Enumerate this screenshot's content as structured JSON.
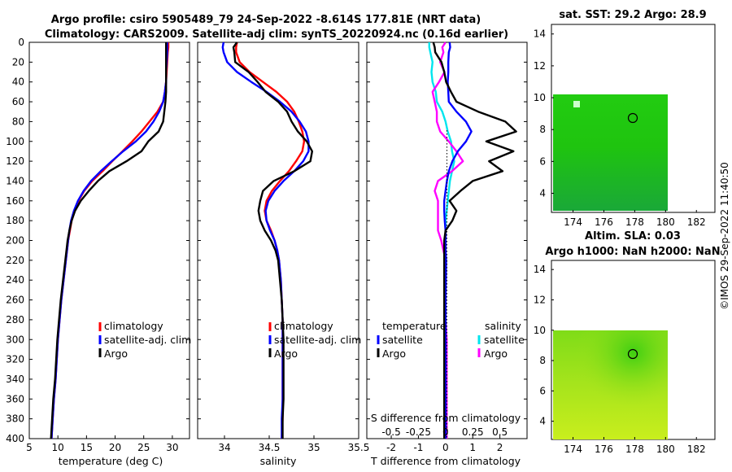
{
  "title": {
    "line1": "Argo profile: csiro 5905489_79 24-Sep-2022 -8.614S 177.81E (NRT data)",
    "line2": "Climatology: CARS2009. Satellite-adj clim: synTS_20220924.nc (0.16d earlier)"
  },
  "colors": {
    "climatology": "#ff0000",
    "satellite": "#0000ff",
    "argo": "#000000",
    "t_diff_sat": "#0000ff",
    "s_diff_sat": "#00e5ee",
    "s_diff_argo": "#ff00ff"
  },
  "depth_axis": {
    "ticks": [
      0,
      20,
      40,
      60,
      80,
      100,
      120,
      140,
      160,
      180,
      200,
      220,
      240,
      260,
      280,
      300,
      320,
      340,
      360,
      380,
      400
    ]
  },
  "panels": {
    "temperature": {
      "xlabel": "temperature (deg C)",
      "ticks": [
        5,
        10,
        15,
        20,
        25,
        30
      ]
    },
    "salinity": {
      "xlabel": "salinity",
      "ticks": [
        "34",
        "34.5",
        "35",
        "35.5"
      ]
    },
    "difference": {
      "xlabel": "T difference from climatology",
      "ticks": [
        "-2",
        "-1",
        "0",
        "1",
        "2"
      ],
      "s_label": "S difference from climatology",
      "s_ticks": [
        "-0.5",
        "-0.25",
        "0",
        "0.25",
        "0.5"
      ]
    }
  },
  "legend": {
    "climatology": "climatology",
    "satellite_adj": "satellite-adj. clim",
    "argo": "Argo",
    "temperature_head": "temperature",
    "salinity_head": "salinity",
    "satellite": "satellite"
  },
  "maps": {
    "sst": {
      "title": "sat. SST: 29.2 Argo: 28.9"
    },
    "sla": {
      "title1": "Altim. SLA: 0.03",
      "title2": "Argo h1000: NaN h2000: NaN"
    },
    "x_ticks": [
      "174",
      "176",
      "178",
      "180",
      "182"
    ],
    "y_ticks": [
      "4",
      "6",
      "8",
      "10",
      "12",
      "14"
    ]
  },
  "footer": {
    "stamp": "©IMOS 29-Sep-2022 11:40:50"
  },
  "chart_data": {
    "type": "line",
    "depth": [
      0,
      5,
      10,
      20,
      30,
      40,
      50,
      60,
      70,
      80,
      90,
      100,
      110,
      120,
      130,
      140,
      150,
      160,
      170,
      180,
      190,
      200,
      210,
      220,
      240,
      260,
      280,
      300,
      320,
      340,
      360,
      380,
      400
    ],
    "temperature": {
      "xlim": [
        5,
        33
      ],
      "ylim": [
        400,
        0
      ],
      "series": [
        {
          "name": "climatology",
          "values": [
            29.3,
            29.3,
            29.2,
            29.1,
            29.0,
            28.9,
            28.7,
            28.4,
            27.4,
            26.0,
            24.6,
            23.0,
            21.3,
            19.5,
            17.8,
            16.0,
            14.6,
            13.6,
            12.9,
            12.4,
            12.1,
            11.8,
            11.6,
            11.4,
            11.0,
            10.6,
            10.3,
            10.0,
            9.8,
            9.6,
            9.3,
            9.1,
            8.9
          ]
        },
        {
          "name": "satellite-adj. clim",
          "values": [
            29.1,
            29.1,
            29.1,
            29.0,
            28.9,
            28.9,
            28.7,
            28.4,
            27.7,
            26.7,
            25.4,
            23.6,
            21.4,
            19.4,
            17.5,
            15.8,
            14.5,
            13.5,
            12.8,
            12.3,
            12.0,
            11.8,
            11.6,
            11.4,
            11.0,
            10.6,
            10.3,
            10.0,
            9.8,
            9.6,
            9.3,
            9.1,
            8.9
          ]
        },
        {
          "name": "Argo",
          "values": [
            28.9,
            28.9,
            28.9,
            28.9,
            28.9,
            28.9,
            28.9,
            28.8,
            28.6,
            28.4,
            27.6,
            25.8,
            24.6,
            22.0,
            19.0,
            17.0,
            15.4,
            14.0,
            13.0,
            12.4,
            12.0,
            11.7,
            11.5,
            11.3,
            10.9,
            10.5,
            10.2,
            9.9,
            9.7,
            9.5,
            9.2,
            9.0,
            8.8
          ]
        }
      ]
    },
    "salinity": {
      "xlim": [
        33.7,
        35.5
      ],
      "ylim": [
        400,
        0
      ],
      "series": [
        {
          "name": "climatology",
          "values": [
            34.14,
            34.13,
            34.13,
            34.17,
            34.28,
            34.43,
            34.58,
            34.7,
            34.78,
            34.83,
            34.87,
            34.89,
            34.87,
            34.8,
            34.72,
            34.62,
            34.53,
            34.47,
            34.45,
            34.47,
            34.52,
            34.56,
            34.59,
            34.61,
            34.63,
            34.64,
            34.65,
            34.65,
            34.65,
            34.65,
            34.65,
            34.65,
            34.64
          ]
        },
        {
          "name": "satellite-adj. clim",
          "values": [
            33.99,
            33.98,
            33.99,
            34.03,
            34.14,
            34.3,
            34.47,
            34.62,
            34.75,
            34.84,
            34.91,
            34.94,
            34.94,
            34.88,
            34.78,
            34.66,
            34.56,
            34.49,
            34.46,
            34.47,
            34.51,
            34.56,
            34.59,
            34.61,
            34.63,
            34.64,
            34.65,
            34.65,
            34.65,
            34.65,
            34.65,
            34.64,
            34.64
          ]
        },
        {
          "name": "Argo",
          "values": [
            34.14,
            34.1,
            34.11,
            34.12,
            34.27,
            34.37,
            34.46,
            34.6,
            34.7,
            34.75,
            34.82,
            34.92,
            34.98,
            34.96,
            34.78,
            34.55,
            34.43,
            34.4,
            34.38,
            34.4,
            34.45,
            34.52,
            34.57,
            34.6,
            34.62,
            34.64,
            34.65,
            34.66,
            34.66,
            34.66,
            34.66,
            34.65,
            34.65
          ]
        }
      ]
    },
    "t_difference": {
      "xlim": [
        -2.9,
        3.0
      ],
      "ylim": [
        400,
        0
      ],
      "series": [
        {
          "name": "satellite",
          "values": [
            0.15,
            0.17,
            0.12,
            0.1,
            0.1,
            0.08,
            0.1,
            0.12,
            0.4,
            0.75,
            0.95,
            0.75,
            0.45,
            0.25,
            0.12,
            0.05,
            0.0,
            -0.05,
            -0.05,
            -0.03,
            0.0,
            0.0,
            0.0,
            0.02,
            0.01,
            0.0,
            0.0,
            0.0,
            0.0,
            0.0,
            0.0,
            0.0,
            0.0
          ]
        },
        {
          "name": "Argo",
          "values": [
            -0.45,
            -0.4,
            -0.38,
            -0.15,
            -0.05,
            0.02,
            0.2,
            0.4,
            1.2,
            2.2,
            2.6,
            1.5,
            2.5,
            1.6,
            2.1,
            1.0,
            0.55,
            0.15,
            0.4,
            0.25,
            0.0,
            -0.05,
            -0.05,
            -0.05,
            -0.05,
            -0.05,
            -0.05,
            -0.05,
            -0.05,
            -0.05,
            -0.05,
            -0.05,
            -0.05
          ]
        }
      ]
    },
    "s_difference": {
      "xlim": [
        -0.725,
        0.75
      ],
      "ylim": [
        400,
        0
      ],
      "series": [
        {
          "name": "satellite",
          "values": [
            -0.15,
            -0.15,
            -0.14,
            -0.12,
            -0.13,
            -0.12,
            -0.09,
            -0.08,
            -0.03,
            0.0,
            0.02,
            0.05,
            0.06,
            0.08,
            0.06,
            0.04,
            0.03,
            0.02,
            0.01,
            0.0,
            0.0,
            0.0,
            0.0,
            0.0,
            0.0,
            0.0,
            0.0,
            0.0,
            0.0,
            0.0,
            0.0,
            0.0,
            0.0
          ]
        },
        {
          "name": "Argo",
          "values": [
            0.0,
            -0.03,
            -0.02,
            -0.05,
            -0.01,
            -0.06,
            -0.12,
            -0.1,
            -0.08,
            -0.08,
            -0.05,
            0.03,
            0.1,
            0.16,
            0.06,
            -0.07,
            -0.1,
            -0.07,
            -0.07,
            -0.07,
            -0.07,
            -0.04,
            -0.02,
            0.0,
            0.0,
            0.0,
            0.0,
            0.01,
            0.01,
            0.01,
            0.01,
            0.01,
            0.01
          ]
        }
      ]
    },
    "map": {
      "type": "heatmap",
      "xlim": [
        172.6,
        183.2
      ],
      "ylim": [
        2.8,
        14.6
      ],
      "data_extent_lon": [
        172.8,
        180.0
      ],
      "data_extent_lat": [
        2.9,
        10.1
      ],
      "argo_position": {
        "lon": 177.81,
        "lat": 8.61
      }
    }
  }
}
